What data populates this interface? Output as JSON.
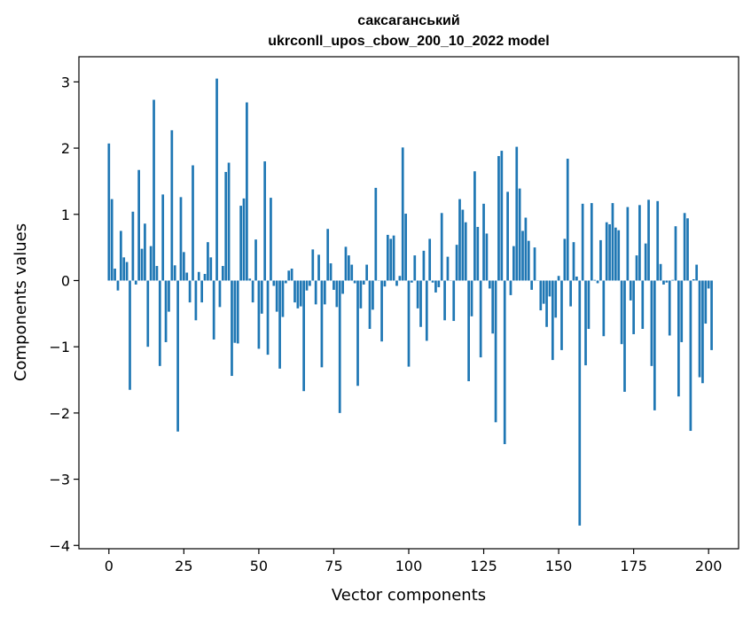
{
  "chart_data": {
    "type": "bar",
    "title_lines": [
      "саксаганський",
      "ukrconll_upos_cbow_200_10_2022 model"
    ],
    "xlabel": "Vector components",
    "ylabel": "Components values",
    "xlim": [
      -10,
      210
    ],
    "ylim": [
      -4.05,
      3.38
    ],
    "xticks": [
      0,
      25,
      50,
      75,
      100,
      125,
      150,
      175,
      200
    ],
    "yticks": [
      -4,
      -3,
      -2,
      -1,
      0,
      1,
      2,
      3
    ],
    "bar_color": "#1f77b4",
    "grid": false,
    "legend": "none",
    "values": [
      2.07,
      1.23,
      0.18,
      -0.15,
      0.75,
      0.35,
      0.28,
      -1.65,
      1.04,
      -0.06,
      1.67,
      0.48,
      0.86,
      -1.0,
      0.52,
      2.73,
      0.22,
      -1.29,
      1.3,
      -0.93,
      -0.47,
      2.27,
      0.23,
      -2.28,
      1.26,
      0.43,
      0.12,
      -0.33,
      1.74,
      -0.6,
      0.13,
      -0.33,
      0.1,
      0.58,
      0.35,
      -0.89,
      3.05,
      -0.4,
      0.22,
      1.64,
      1.78,
      -1.44,
      -0.94,
      -0.95,
      1.13,
      1.24,
      2.69,
      0.03,
      -0.33,
      0.62,
      -1.03,
      -0.5,
      1.8,
      -1.12,
      1.25,
      -0.08,
      -0.47,
      -1.33,
      -0.55,
      -0.04,
      0.15,
      0.18,
      -0.33,
      -0.42,
      -0.39,
      -1.67,
      -0.15,
      -0.08,
      0.47,
      -0.36,
      0.39,
      -1.31,
      -0.36,
      0.78,
      0.26,
      -0.14,
      -0.4,
      -2.0,
      -0.2,
      0.51,
      0.38,
      0.24,
      -0.04,
      -1.59,
      -0.42,
      -0.06,
      0.24,
      -0.73,
      -0.44,
      1.4,
      0.0,
      -0.92,
      -0.09,
      0.69,
      0.63,
      0.68,
      -0.08,
      0.07,
      2.01,
      1.01,
      -1.3,
      -0.03,
      0.38,
      -0.42,
      -0.7,
      0.45,
      -0.91,
      0.63,
      -0.03,
      -0.18,
      -0.1,
      1.02,
      -0.6,
      0.36,
      0.0,
      -0.61,
      0.54,
      1.23,
      1.07,
      0.88,
      -1.52,
      -0.54,
      1.65,
      0.81,
      -1.16,
      1.16,
      0.71,
      -0.12,
      -0.8,
      -2.14,
      1.88,
      1.96,
      -2.47,
      1.34,
      -0.22,
      0.52,
      2.02,
      1.39,
      0.75,
      0.95,
      0.6,
      -0.14,
      0.5,
      0.0,
      -0.45,
      -0.35,
      -0.7,
      -0.24,
      -1.2,
      -0.56,
      0.07,
      -1.05,
      0.63,
      1.84,
      -0.39,
      0.58,
      0.06,
      -3.7,
      1.16,
      -1.28,
      -0.73,
      1.17,
      0.01,
      -0.04,
      0.61,
      -0.84,
      0.88,
      0.85,
      1.17,
      0.8,
      0.76,
      -0.96,
      -1.68,
      1.11,
      -0.3,
      -0.81,
      0.38,
      1.14,
      -0.73,
      0.56,
      1.22,
      -1.29,
      -1.96,
      1.2,
      0.25,
      -0.06,
      -0.03,
      -0.83,
      0.01,
      0.82,
      -1.75,
      -0.93,
      1.02,
      0.94,
      -2.27,
      0.02,
      0.24,
      -1.46,
      -1.55,
      -0.65,
      -0.12,
      -1.05
    ]
  }
}
